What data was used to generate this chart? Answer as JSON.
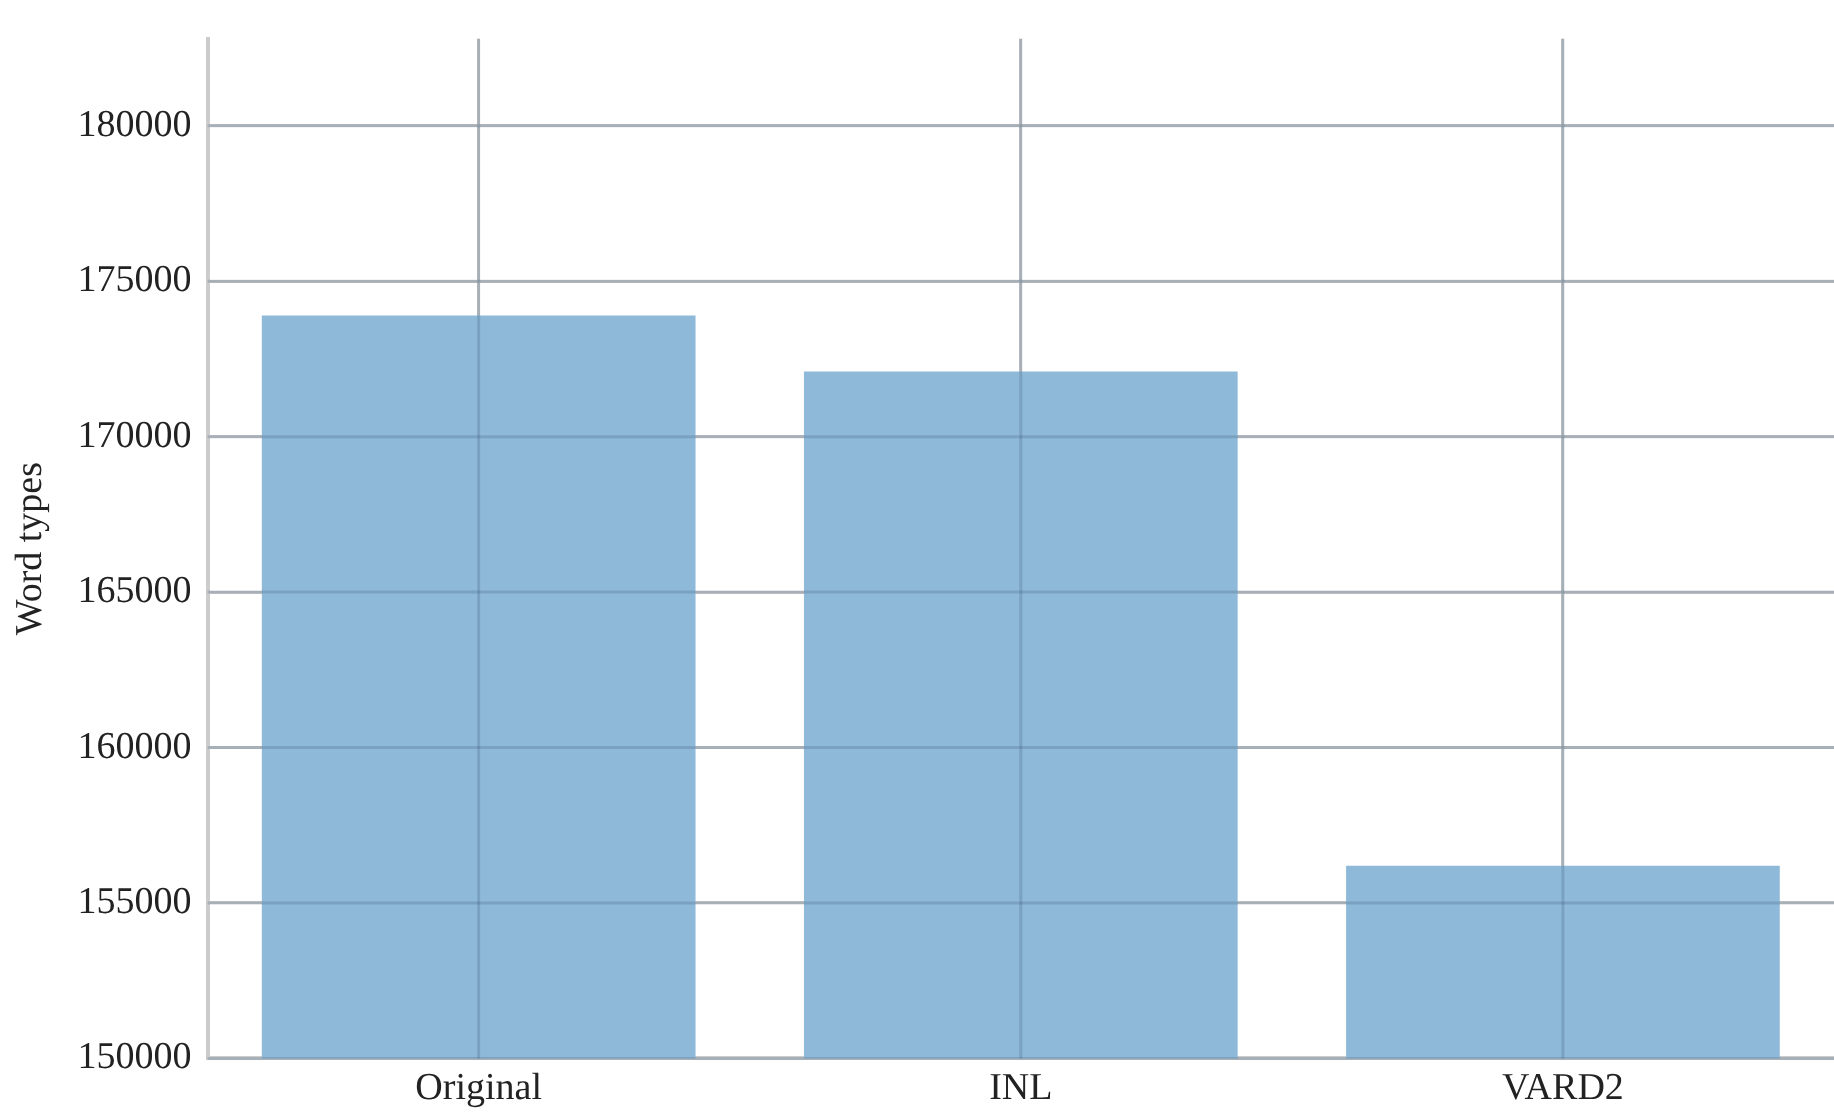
{
  "chart_data": {
    "type": "bar",
    "ylabel": "Word types",
    "categories": [
      "Original",
      "INL",
      "VARD2"
    ],
    "values": [
      173900,
      172100,
      156200
    ],
    "color": "#8fb9d9",
    "ylim": [
      150000,
      182800
    ],
    "yticks": [
      150000,
      155000,
      160000,
      165000,
      170000,
      175000,
      180000
    ],
    "grid": true
  }
}
